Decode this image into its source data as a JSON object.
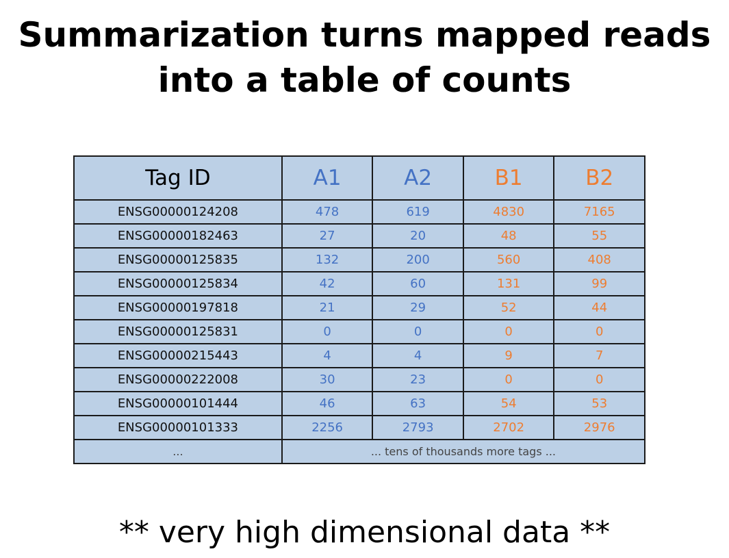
{
  "title": {
    "line1": "Summarization turns mapped reads",
    "line2": "into a table of counts"
  },
  "table": {
    "headers": [
      "Tag ID",
      "A1",
      "A2",
      "B1",
      "B2"
    ],
    "rows": [
      [
        "ENSG00000124208",
        "478",
        "619",
        "4830",
        "7165"
      ],
      [
        "ENSG00000182463",
        "27",
        "20",
        "48",
        "55"
      ],
      [
        "ENSG00000125835",
        "132",
        "200",
        "560",
        "408"
      ],
      [
        "ENSG00000125834",
        "42",
        "60",
        "131",
        "99"
      ],
      [
        "ENSG00000197818",
        "21",
        "29",
        "52",
        "44"
      ],
      [
        "ENSG00000125831",
        "0",
        "0",
        "0",
        "0"
      ],
      [
        "ENSG00000215443",
        "4",
        "4",
        "9",
        "7"
      ],
      [
        "ENSG00000222008",
        "30",
        "23",
        "0",
        "0"
      ],
      [
        "ENSG00000101444",
        "46",
        "63",
        "54",
        "53"
      ],
      [
        "ENSG00000101333",
        "2256",
        "2793",
        "2702",
        "2976"
      ]
    ],
    "last_row": {
      "id": "...",
      "note": "... tens of thousands more tags ..."
    }
  },
  "footer": "** very high dimensional data **",
  "colors": {
    "group_a": "#4472c4",
    "group_b": "#ed7d31",
    "cell_fill": "#bcd0e6"
  }
}
